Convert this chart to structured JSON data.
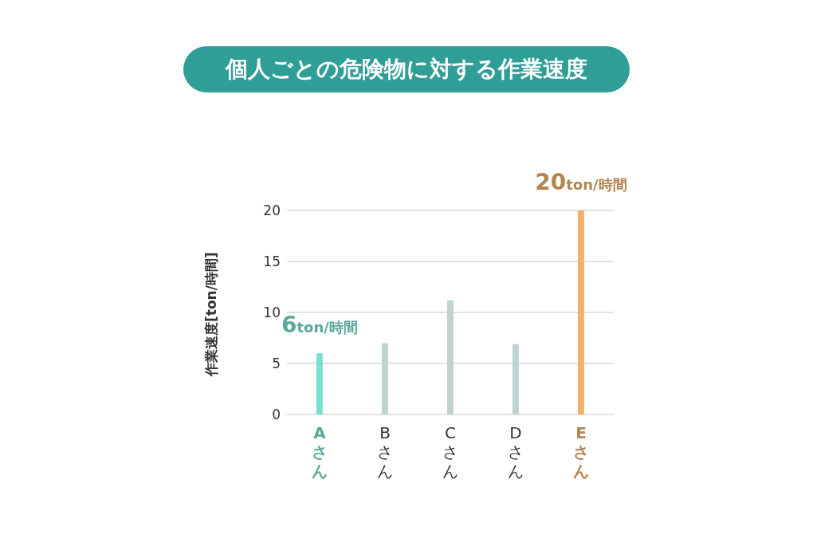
{
  "chart_data": {
    "type": "bar",
    "title": "個人ごとの危険物に対する作業速度",
    "ylabel": "作業速度[ton/時間]",
    "categories": [
      "Aさん",
      "Bさん",
      "Cさん",
      "Dさん",
      "Eさん"
    ],
    "values": [
      6,
      7,
      11.2,
      6.9,
      20
    ],
    "colors": [
      "#79e0cf",
      "#bfd3d3",
      "#bfd3d3",
      "#bfd3d3",
      "#f0b16a"
    ],
    "value_labels": [
      "6ton/時間",
      null,
      null,
      null,
      "20ton/時間"
    ],
    "ylim": [
      0,
      20
    ],
    "yticks": [
      0,
      5,
      10,
      15,
      20
    ],
    "grid": "y",
    "legend": false
  }
}
